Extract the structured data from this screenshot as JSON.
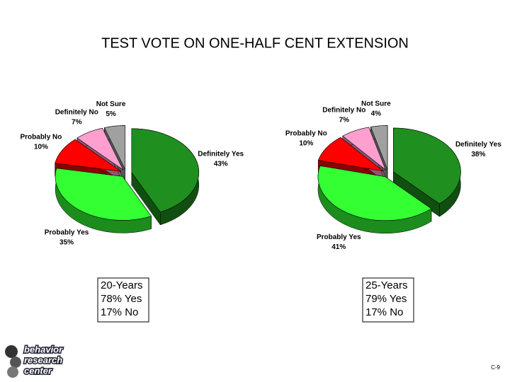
{
  "title": "TEST VOTE ON ONE-HALF CENT EXTENSION",
  "chart_data": [
    {
      "type": "pie",
      "categories": [
        "Definitely Yes",
        "Probably Yes",
        "Probably No",
        "Definitely No",
        "Not Sure"
      ],
      "values": [
        43,
        35,
        10,
        7,
        5
      ],
      "value_labels": [
        "43%",
        "35%",
        "10%",
        "7%",
        "5%"
      ],
      "colors": [
        "#1f8f1f",
        "#33ff33",
        "#ff0000",
        "#ff9fd0",
        "#a0a0a0"
      ],
      "note": [
        "20-Years",
        "78% Yes",
        "17% No"
      ]
    },
    {
      "type": "pie",
      "categories": [
        "Definitely Yes",
        "Probably Yes",
        "Probably No",
        "Definitely No",
        "Not Sure"
      ],
      "values": [
        38,
        41,
        10,
        7,
        4
      ],
      "value_labels": [
        "38%",
        "41%",
        "10%",
        "7%",
        "4%"
      ],
      "colors": [
        "#1f8f1f",
        "#33ff33",
        "#ff0000",
        "#ff9fd0",
        "#a0a0a0"
      ],
      "note": [
        "25-Years",
        "79% Yes",
        "17% No"
      ]
    }
  ],
  "logo": [
    "behavior",
    "research",
    "center"
  ],
  "page_number": "C-9"
}
